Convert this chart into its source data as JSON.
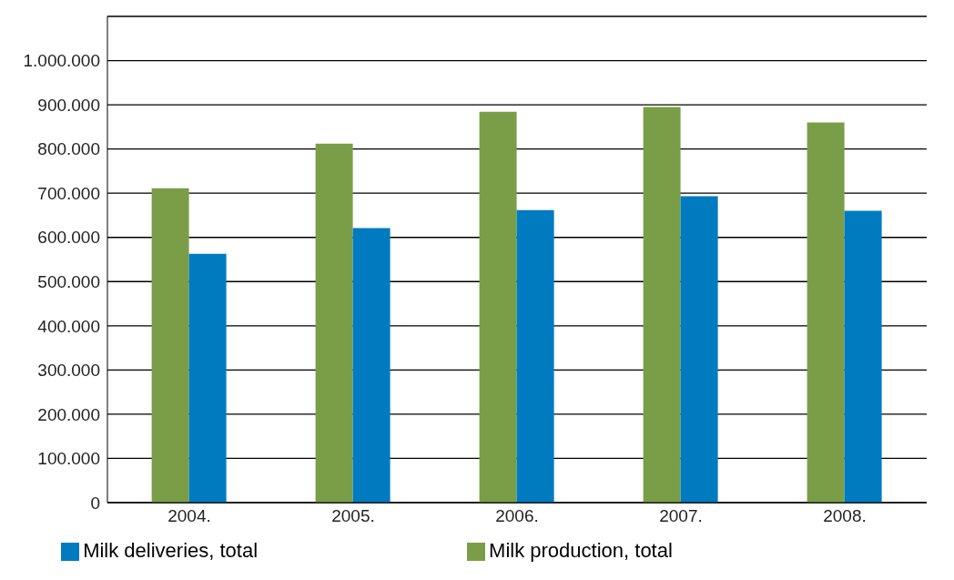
{
  "chart_data": {
    "type": "bar",
    "categories": [
      "2004.",
      "2005.",
      "2006.",
      "2007.",
      "2008."
    ],
    "series": [
      {
        "name": "Milk production, total",
        "color": "#7a9e48",
        "values": [
          711000,
          812000,
          884000,
          895000,
          860000
        ]
      },
      {
        "name": "Milk deliveries, total",
        "color": "#007bbf",
        "values": [
          563000,
          621000,
          662000,
          693000,
          660000
        ]
      }
    ],
    "ylim": [
      0,
      1100000
    ],
    "yticks": [
      0,
      {
        "value": 100000,
        "label": "100.000"
      },
      {
        "value": 200000,
        "label": "200.000"
      },
      {
        "value": 300000,
        "label": "300.000"
      },
      {
        "value": 400000,
        "label": "400.000"
      },
      {
        "value": 500000,
        "label": "500.000"
      },
      {
        "value": 600000,
        "label": "600.000"
      },
      {
        "value": 700000,
        "label": "700.000"
      },
      {
        "value": 800000,
        "label": "800.000"
      },
      {
        "value": 900000,
        "label": "900.000"
      },
      {
        "value": 1000000,
        "label": "1.000.000"
      },
      {
        "value": 1100000,
        "label": null
      }
    ],
    "grid": "y",
    "legend": "bottom"
  }
}
